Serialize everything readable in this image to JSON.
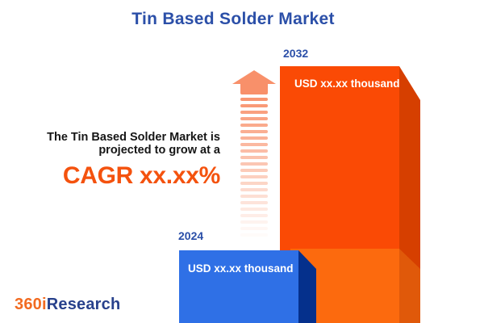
{
  "title": "Tin Based Solder Market",
  "description": {
    "line1": "The Tin Based Solder Market is",
    "line2": "projected to grow at a",
    "cagr": "CAGR xx.xx%"
  },
  "chart_data": {
    "type": "bar",
    "title": "Tin Based Solder Market",
    "categories": [
      "2024",
      "2032"
    ],
    "bars": [
      {
        "year": "2024",
        "value_label": "USD xx.xx thousand",
        "color": "#2F70E6"
      },
      {
        "year": "2032",
        "value_label": "USD xx.xx thousand",
        "color": "#FA4A05"
      }
    ],
    "annotation": "CAGR xx.xx%",
    "legend": "none",
    "grid": false
  },
  "logo": {
    "part1": "360i",
    "part2": "Research"
  },
  "icons": {
    "growth_arrow": "up-arrow-fading-stripes"
  },
  "colors": {
    "title_blue": "#2B4FA8",
    "cagr_orange": "#F4520E",
    "text_dark": "#161616",
    "bar_2032_front": "#FA4A05",
    "bar_2032_side": "#D63F00",
    "bar_2032_base_front": "#FC6A0E",
    "bar_2032_base_side": "#E0590A",
    "bar_2024_front": "#2F70E6",
    "bar_2024_side": "#05308C",
    "arrow": "#F8906A",
    "logo_orange": "#F26B21",
    "logo_blue": "#28418C",
    "value_label_text": "#ffffff",
    "background": "#ffffff"
  }
}
